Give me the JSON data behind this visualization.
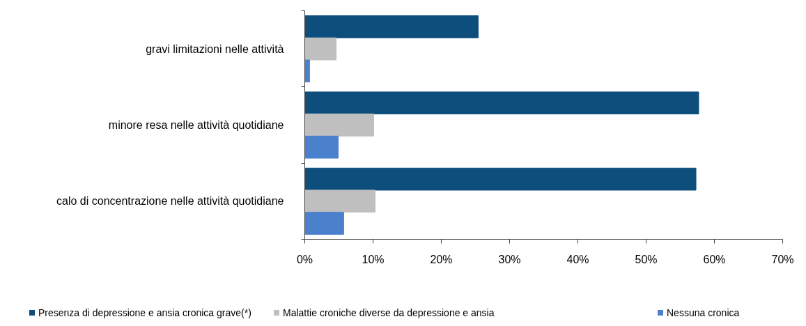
{
  "chart_data": {
    "type": "bar",
    "orientation": "horizontal",
    "categories": [
      "gravi limitazioni nelle attività",
      "minore resa nelle attività quotidiane",
      "calo di concentrazione nelle attività quotidiane"
    ],
    "series": [
      {
        "name": "Presenza di depressione e ansia cronica grave(*)",
        "color": "#0d4e7c",
        "values": [
          25.4,
          57.7,
          57.3
        ]
      },
      {
        "name": "Malattie croniche diverse da depressione e ansia",
        "color": "#bfbfbf",
        "values": [
          4.6,
          10.1,
          10.3
        ]
      },
      {
        "name": "Nessuna cronica",
        "color": "#4a80cc",
        "values": [
          0.7,
          4.9,
          5.7
        ]
      }
    ],
    "xlim": [
      0,
      70
    ],
    "xticks": [
      {
        "value": 0,
        "label": "0%"
      },
      {
        "value": 10,
        "label": "10%"
      },
      {
        "value": 20,
        "label": "20%"
      },
      {
        "value": 30,
        "label": "30%"
      },
      {
        "value": 40,
        "label": "40%"
      },
      {
        "value": 50,
        "label": "50%"
      },
      {
        "value": 60,
        "label": "60%"
      },
      {
        "value": 70,
        "label": "70%"
      }
    ],
    "legend": "bottom"
  }
}
